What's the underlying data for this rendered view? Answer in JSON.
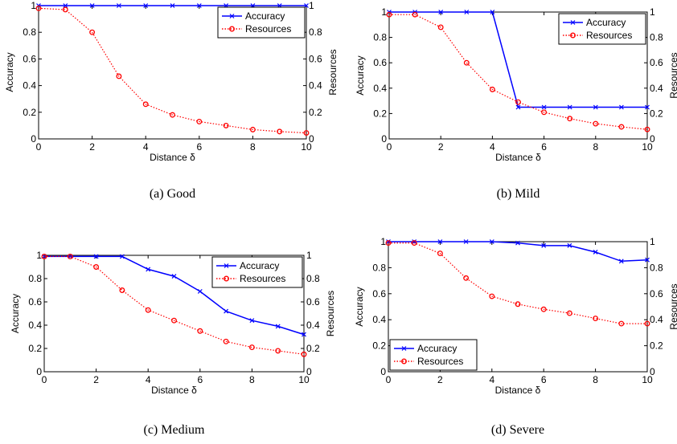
{
  "chart_data": [
    {
      "type": "line",
      "caption": "(a)  Good",
      "xlabel": "Distance δ",
      "ylabel_left": "Accuracy",
      "ylabel_right": "Resources",
      "xlim": [
        0,
        10
      ],
      "ylim_left": [
        0,
        1
      ],
      "ylim_right": [
        0,
        1
      ],
      "xticks": [
        "0",
        "2",
        "4",
        "6",
        "8",
        "10"
      ],
      "yticks_left": [
        "0",
        "0.2",
        "0.4",
        "0.6",
        "0.8",
        "1"
      ],
      "yticks_right": [
        "0",
        "0.2",
        "0.4",
        "0.6",
        "0.8",
        "1"
      ],
      "grid": false,
      "legend_placement": "top-right",
      "series": [
        {
          "name": "Accuracy",
          "color": "#0000ff",
          "marker": "x",
          "style": "solid",
          "axis": "left",
          "x": [
            0,
            1,
            2,
            3,
            4,
            5,
            6,
            7,
            8,
            9,
            10
          ],
          "y": [
            1,
            1,
            1,
            1,
            1,
            1,
            1,
            1,
            1,
            1,
            1
          ]
        },
        {
          "name": "Resources",
          "color": "#ff0000",
          "marker": "o",
          "style": "dotted",
          "axis": "right",
          "x": [
            0,
            1,
            2,
            3,
            4,
            5,
            6,
            7,
            8,
            9,
            10
          ],
          "y": [
            0.98,
            0.97,
            0.8,
            0.47,
            0.26,
            0.18,
            0.13,
            0.1,
            0.07,
            0.055,
            0.045
          ]
        }
      ]
    },
    {
      "type": "line",
      "caption": "(b)  Mild",
      "xlabel": "Distance δ",
      "ylabel_left": "Accuracy",
      "ylabel_right": "Resources",
      "xlim": [
        0,
        10
      ],
      "ylim_left": [
        0,
        1
      ],
      "ylim_right": [
        0,
        1
      ],
      "xticks": [
        "0",
        "2",
        "4",
        "6",
        "8",
        "10"
      ],
      "yticks_left": [
        "0",
        "0.2",
        "0.4",
        "0.6",
        "0.8",
        "1"
      ],
      "yticks_right": [
        "0",
        "0.2",
        "0.4",
        "0.6",
        "0.8",
        "1"
      ],
      "grid": false,
      "legend_placement": "top-right",
      "series": [
        {
          "name": "Accuracy",
          "color": "#0000ff",
          "marker": "x",
          "style": "solid",
          "axis": "left",
          "x": [
            0,
            1,
            2,
            3,
            4,
            5,
            6,
            7,
            8,
            9,
            10
          ],
          "y": [
            1,
            1,
            1,
            1,
            1,
            0.25,
            0.25,
            0.25,
            0.25,
            0.25,
            0.25
          ]
        },
        {
          "name": "Resources",
          "color": "#ff0000",
          "marker": "o",
          "style": "dotted",
          "axis": "right",
          "x": [
            0,
            1,
            2,
            3,
            4,
            5,
            6,
            7,
            8,
            9,
            10
          ],
          "y": [
            0.98,
            0.98,
            0.88,
            0.6,
            0.39,
            0.29,
            0.21,
            0.16,
            0.12,
            0.095,
            0.075
          ]
        }
      ]
    },
    {
      "type": "line",
      "caption": "(c)  Medium",
      "xlabel": "Distance δ",
      "ylabel_left": "Accuracy",
      "ylabel_right": "Resources",
      "xlim": [
        0,
        10
      ],
      "ylim_left": [
        0,
        1
      ],
      "ylim_right": [
        0,
        1
      ],
      "xticks": [
        "0",
        "2",
        "4",
        "6",
        "8",
        "10"
      ],
      "yticks_left": [
        "0",
        "0.2",
        "0.4",
        "0.6",
        "0.8",
        "1"
      ],
      "yticks_right": [
        "0",
        "0.2",
        "0.4",
        "0.6",
        "0.8",
        "1"
      ],
      "grid": false,
      "legend_placement": "top-right",
      "series": [
        {
          "name": "Accuracy",
          "color": "#0000ff",
          "marker": "x",
          "style": "solid",
          "axis": "left",
          "x": [
            0,
            1,
            2,
            3,
            4,
            5,
            6,
            7,
            8,
            9,
            10
          ],
          "y": [
            0.99,
            0.99,
            0.99,
            0.99,
            0.88,
            0.82,
            0.69,
            0.52,
            0.44,
            0.39,
            0.32
          ]
        },
        {
          "name": "Resources",
          "color": "#ff0000",
          "marker": "o",
          "style": "dotted",
          "axis": "right",
          "x": [
            0,
            1,
            2,
            3,
            4,
            5,
            6,
            7,
            8,
            9,
            10
          ],
          "y": [
            0.99,
            0.99,
            0.9,
            0.7,
            0.53,
            0.44,
            0.35,
            0.26,
            0.21,
            0.18,
            0.15
          ]
        }
      ]
    },
    {
      "type": "line",
      "caption": "(d)  Severe",
      "xlabel": "Distance δ",
      "ylabel_left": "Accuracy",
      "ylabel_right": "Resources",
      "xlim": [
        0,
        10
      ],
      "ylim_left": [
        0,
        1
      ],
      "ylim_right": [
        0,
        1
      ],
      "xticks": [
        "0",
        "2",
        "4",
        "6",
        "8",
        "10"
      ],
      "yticks_left": [
        "0",
        "0.2",
        "0.4",
        "0.6",
        "0.8",
        "1"
      ],
      "yticks_right": [
        "0",
        "0.2",
        "0.4",
        "0.6",
        "0.8",
        "1"
      ],
      "grid": false,
      "legend_placement": "bottom-left",
      "series": [
        {
          "name": "Accuracy",
          "color": "#0000ff",
          "marker": "x",
          "style": "solid",
          "axis": "left",
          "x": [
            0,
            1,
            2,
            3,
            4,
            5,
            6,
            7,
            8,
            9,
            10
          ],
          "y": [
            1,
            1,
            1,
            1,
            1,
            0.99,
            0.97,
            0.97,
            0.92,
            0.85,
            0.86
          ]
        },
        {
          "name": "Resources",
          "color": "#ff0000",
          "marker": "o",
          "style": "dotted",
          "axis": "right",
          "x": [
            0,
            1,
            2,
            3,
            4,
            5,
            6,
            7,
            8,
            9,
            10
          ],
          "y": [
            0.99,
            0.99,
            0.91,
            0.72,
            0.58,
            0.52,
            0.48,
            0.45,
            0.41,
            0.37,
            0.37
          ]
        }
      ]
    }
  ]
}
